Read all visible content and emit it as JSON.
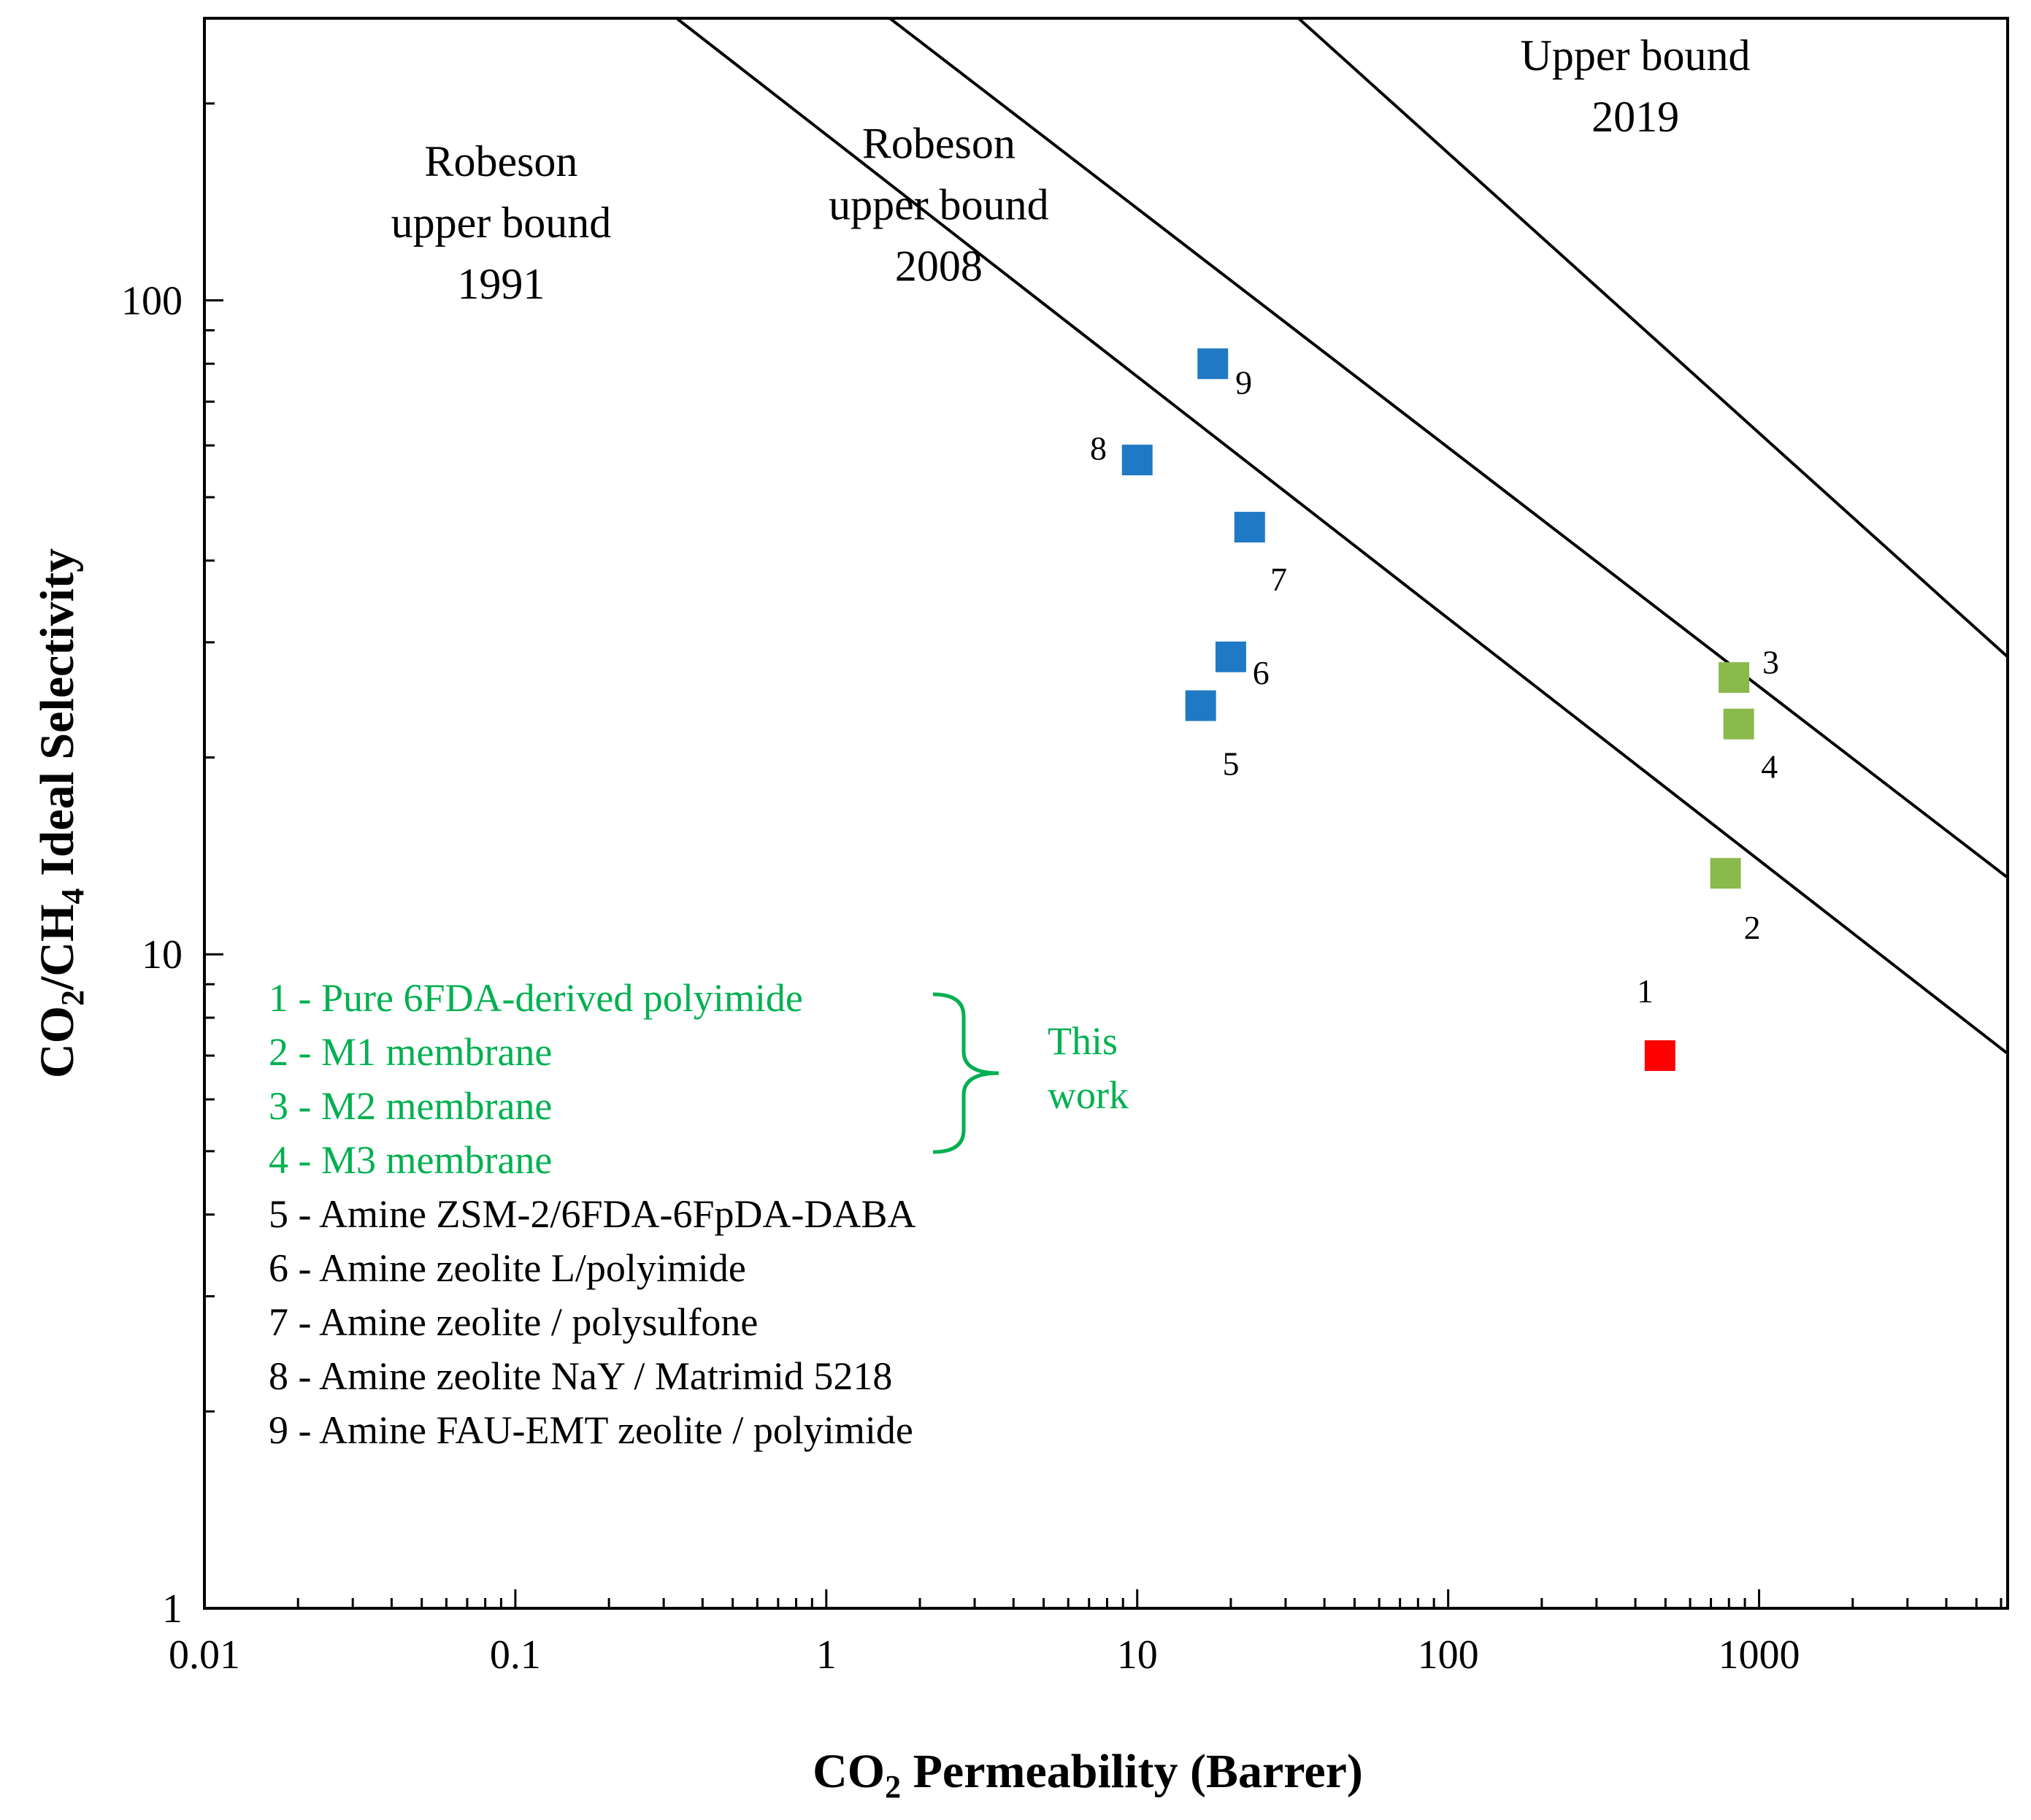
{
  "colors": {
    "blue": "#2079c4",
    "green": "#8ab94c",
    "red": "#ff0000",
    "legend_green": "#00b050",
    "black": "#000000"
  },
  "chart_data": {
    "type": "scatter",
    "title": "",
    "xlabel": {
      "main": "CO",
      "sub": "2",
      "rest": " Permeability (Barrer)"
    },
    "ylabel": {
      "p1": "CO",
      "s1": "2",
      "p2": "/CH",
      "s2": "4",
      "p3": " Ideal Selectivity"
    },
    "xscale": "log",
    "yscale": "log",
    "xlim": [
      0.01,
      6300
    ],
    "ylim": [
      1,
      270
    ],
    "xticks": [
      {
        "value": 0.01,
        "label": "0.01"
      },
      {
        "value": 0.1,
        "label": "0.1"
      },
      {
        "value": 1,
        "label": "1"
      },
      {
        "value": 10,
        "label": "10"
      },
      {
        "value": 100,
        "label": "100"
      },
      {
        "value": 1000,
        "label": "1000"
      }
    ],
    "yticks": [
      {
        "value": 1,
        "label": "1"
      },
      {
        "value": 10,
        "label": "10"
      },
      {
        "value": 100,
        "label": "100"
      }
    ],
    "bounds": [
      {
        "name": "Robeson upper bound 1991",
        "lines": [
          "Robeson",
          "upper bound",
          "1991"
        ],
        "from": [
          0.33,
          270
        ],
        "to": [
          6300,
          7.05
        ],
        "label_at": [
          0.09,
          155
        ]
      },
      {
        "name": "Robeson upper bound 2008",
        "lines": [
          "Robeson",
          "upper bound",
          "2008"
        ],
        "from": [
          1.6,
          270
        ],
        "to": [
          6300,
          13.1
        ],
        "label_at": [
          2.3,
          165
        ]
      },
      {
        "name": "Upper bound 2019",
        "lines": [
          "Upper bound",
          "2019"
        ],
        "from": [
          33,
          270
        ],
        "to": [
          6300,
          28.5
        ],
        "label_at": [
          400,
          225
        ]
      }
    ],
    "points": [
      {
        "id": "1",
        "x": 480,
        "y": 7.0,
        "color": "red",
        "label_at": [
          430,
          8.8
        ]
      },
      {
        "id": "2",
        "x": 780,
        "y": 13.3,
        "color": "green",
        "label_at": [
          950,
          11.0
        ]
      },
      {
        "id": "3",
        "x": 830,
        "y": 26.5,
        "color": "green",
        "label_at": [
          1090,
          28.0
        ]
      },
      {
        "id": "4",
        "x": 860,
        "y": 22.5,
        "color": "green",
        "label_at": [
          1080,
          19.4
        ]
      },
      {
        "id": "5",
        "x": 16,
        "y": 24.0,
        "color": "blue",
        "label_at": [
          20,
          19.6
        ]
      },
      {
        "id": "6",
        "x": 20,
        "y": 28.5,
        "color": "blue",
        "label_at": [
          25,
          27.0
        ]
      },
      {
        "id": "7",
        "x": 23,
        "y": 45.0,
        "color": "blue",
        "label_at": [
          28.5,
          37.5
        ]
      },
      {
        "id": "8",
        "x": 10,
        "y": 57.0,
        "color": "blue",
        "label_at": [
          7.5,
          59.5
        ]
      },
      {
        "id": "9",
        "x": 17.5,
        "y": 80.0,
        "color": "blue",
        "label_at": [
          22,
          75.0
        ]
      }
    ],
    "legend": {
      "items": [
        {
          "text": "1 - Pure 6FDA-derived polyimide",
          "color": "legend_green"
        },
        {
          "text": "2 - M1 membrane",
          "color": "legend_green"
        },
        {
          "text": "3 - M2 membrane",
          "color": "legend_green"
        },
        {
          "text": "4 - M3 membrane",
          "color": "legend_green"
        },
        {
          "text": "5 - Amine ZSM-2/6FDA-6FpDA-DABA",
          "color": "black"
        },
        {
          "text": "6 - Amine zeolite L/polyimide",
          "color": "black"
        },
        {
          "text": "7 - Amine zeolite / polysulfone",
          "color": "black"
        },
        {
          "text": "8 - Amine zeolite NaY / Matrimid 5218",
          "color": "black"
        },
        {
          "text": "9 - Amine FAU-EMT zeolite / polyimide",
          "color": "black"
        }
      ],
      "bracket_lines": [
        "This",
        "work"
      ]
    }
  }
}
